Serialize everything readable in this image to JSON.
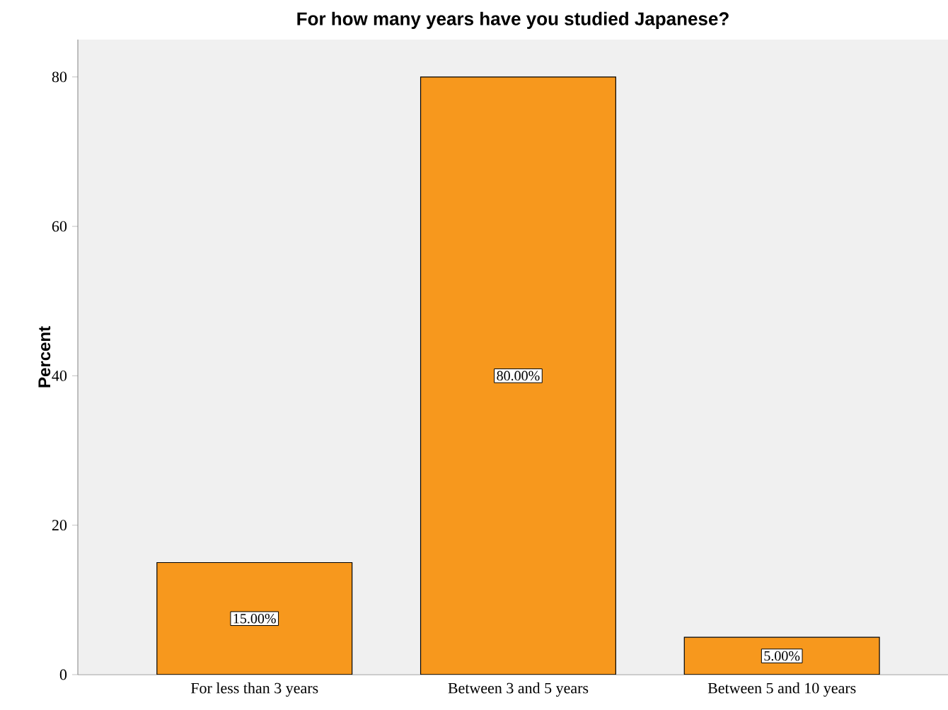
{
  "chart_data": {
    "type": "bar",
    "title": "For how many years have you studied Japanese?",
    "ylabel": "Percent",
    "categories": [
      "For less than 3 years",
      "Between 3 and 5 years",
      "Between 5 and 10 years"
    ],
    "values": [
      15,
      80,
      5
    ],
    "value_labels": [
      "15.00%",
      "80.00%",
      "5.00%"
    ],
    "color": "#f7981d",
    "ylim": [
      0,
      85
    ],
    "yticks": [
      0,
      20,
      40,
      60,
      80
    ],
    "grid": false
  }
}
